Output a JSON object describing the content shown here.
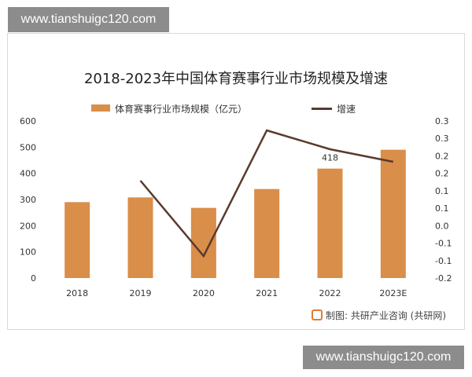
{
  "watermarks": {
    "top": "www.tianshuigc120.com",
    "bottom": "www.tianshuigc120.com"
  },
  "source": "制图: 共研产业咨询 (共研网)",
  "chart_data": {
    "type": "bar",
    "title": "2018-2023年中国体育赛事行业市场规模及增速",
    "categories": [
      "2018",
      "2019",
      "2020",
      "2021",
      "2022",
      "2023E"
    ],
    "series": [
      {
        "name": "体育赛事行业市场规模（亿元）",
        "type": "bar",
        "axis": "left",
        "color": "#d98e4a",
        "values": [
          290,
          308,
          268,
          340,
          418,
          490
        ]
      },
      {
        "name": "增速",
        "type": "line",
        "axis": "right",
        "color": "#5a3a2e",
        "values": [
          null,
          0.11,
          -0.13,
          0.27,
          0.21,
          0.17
        ]
      }
    ],
    "data_labels": [
      {
        "category": "2022",
        "text": "418"
      }
    ],
    "left_axis": {
      "min": 0,
      "max": 600,
      "ticks": [
        "0",
        "100",
        "200",
        "300",
        "400",
        "500",
        "600"
      ]
    },
    "right_axis": {
      "min": -0.2,
      "max": 0.3,
      "ticks": [
        "-0.2",
        "-0.1",
        "-0.1",
        "0.0",
        "0.1",
        "0.1",
        "0.2",
        "0.2",
        "0.3",
        "0.3"
      ]
    },
    "grid": false,
    "legend": "top"
  }
}
